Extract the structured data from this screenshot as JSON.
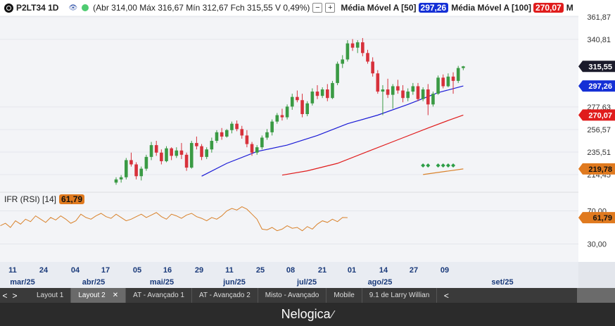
{
  "header": {
    "symbol": "P2LT34 1D",
    "ohlc": "(Abr 314,00 Máx 316,67 Mín 312,67 Fch 315,55 V 0,49%)",
    "ma50_label": "Média Móvel A [50]",
    "ma50_value": "297,26",
    "ma100_label": "Média Móvel A [100]",
    "ma100_value": "270,07",
    "btn_minus": "−",
    "btn_plus": "+",
    "trailing": "M"
  },
  "rsi_panel": {
    "label": "IFR (RSI) [14]",
    "value": "61,79"
  },
  "colors": {
    "up": "#3a9a44",
    "down": "#d7313b",
    "ma50": "#1a1ad6",
    "ma100": "#e01c1c",
    "rsi": "#d9822b",
    "price_badge": "#1b1b2b",
    "ma50_badge": "#1530d6",
    "ma100_badge": "#e01c1c",
    "rsi_badge": "#e07a1f"
  },
  "tabs": [
    {
      "label": "Layout 1",
      "active": false
    },
    {
      "label": "Layout 2",
      "active": true,
      "close": "✕"
    },
    {
      "label": "AT - Avançado 1",
      "active": false
    },
    {
      "label": "AT - Avançado 2",
      "active": false
    },
    {
      "label": "Misto - Avançado",
      "active": false
    },
    {
      "label": "Mobile",
      "active": false
    },
    {
      "label": "9.1 de Larry Willian",
      "active": false
    }
  ],
  "tab_nav": {
    "prev": "<",
    "next": ">",
    "more": "<"
  },
  "footer": {
    "brand": "Nelogica"
  },
  "chart_data": {
    "type": "candlestick",
    "price_axis": {
      "ticks": [
        "361,87",
        "340,81",
        "277,63",
        "256,57",
        "235,51",
        "214,45"
      ],
      "range": [
        200,
        367
      ],
      "badges": [
        {
          "label": "315,55",
          "value": 315.55,
          "color": "#1b1b2b"
        },
        {
          "label": "297,26",
          "value": 297.26,
          "color": "#1530d6"
        },
        {
          "label": "270,07",
          "value": 270.07,
          "color": "#e01c1c"
        },
        {
          "label": "219,78",
          "value": 219.78,
          "color": "#e07a1f"
        }
      ]
    },
    "rsi_axis": {
      "ticks": [
        "70,00",
        "30,00"
      ],
      "range": [
        10,
        90
      ],
      "badge": "61,79",
      "badge_value": 61.79
    },
    "x_day_ticks": [
      "11",
      "24",
      "04",
      "17",
      "05",
      "16",
      "29",
      "11",
      "25",
      "08",
      "21",
      "01",
      "14",
      "27",
      "09"
    ],
    "x_month_ticks": [
      "mar/25",
      "abr/25",
      "mai/25",
      "jun/25",
      "jul/25",
      "ago/25",
      "set/25"
    ],
    "candles": [
      [
        207,
        212,
        205,
        210
      ],
      [
        210,
        214,
        207,
        212
      ],
      [
        212,
        230,
        210,
        228
      ],
      [
        228,
        235,
        222,
        224
      ],
      [
        224,
        226,
        210,
        213
      ],
      [
        213,
        222,
        209,
        220
      ],
      [
        220,
        233,
        218,
        231
      ],
      [
        231,
        245,
        228,
        242
      ],
      [
        242,
        246,
        232,
        235
      ],
      [
        235,
        238,
        224,
        227
      ],
      [
        227,
        241,
        226,
        239
      ],
      [
        239,
        240,
        228,
        232
      ],
      [
        232,
        240,
        230,
        237
      ],
      [
        237,
        244,
        229,
        233
      ],
      [
        233,
        235,
        218,
        221
      ],
      [
        221,
        246,
        220,
        244
      ],
      [
        244,
        250,
        238,
        241
      ],
      [
        241,
        243,
        228,
        231
      ],
      [
        231,
        240,
        229,
        238
      ],
      [
        238,
        249,
        235,
        246
      ],
      [
        246,
        256,
        244,
        254
      ],
      [
        254,
        258,
        247,
        250
      ],
      [
        250,
        257,
        249,
        256
      ],
      [
        256,
        264,
        253,
        262
      ],
      [
        262,
        265,
        255,
        257
      ],
      [
        257,
        260,
        248,
        251
      ],
      [
        251,
        256,
        240,
        243
      ],
      [
        243,
        245,
        232,
        235
      ],
      [
        235,
        242,
        233,
        240
      ],
      [
        240,
        251,
        238,
        249
      ],
      [
        249,
        257,
        247,
        254
      ],
      [
        254,
        266,
        251,
        264
      ],
      [
        264,
        272,
        262,
        270
      ],
      [
        270,
        276,
        265,
        268
      ],
      [
        268,
        280,
        266,
        278
      ],
      [
        278,
        290,
        275,
        287
      ],
      [
        287,
        293,
        282,
        284
      ],
      [
        284,
        290,
        268,
        271
      ],
      [
        271,
        283,
        269,
        281
      ],
      [
        281,
        295,
        279,
        292
      ],
      [
        292,
        298,
        285,
        288
      ],
      [
        288,
        296,
        286,
        294
      ],
      [
        294,
        299,
        283,
        286
      ],
      [
        286,
        302,
        285,
        300
      ],
      [
        300,
        320,
        298,
        318
      ],
      [
        318,
        326,
        314,
        322
      ],
      [
        322,
        340,
        320,
        337
      ],
      [
        337,
        341,
        330,
        333
      ],
      [
        333,
        340,
        328,
        338
      ],
      [
        338,
        342,
        325,
        328
      ],
      [
        328,
        331,
        318,
        320
      ],
      [
        320,
        324,
        306,
        309
      ],
      [
        309,
        312,
        290,
        292
      ],
      [
        292,
        298,
        270,
        294
      ],
      [
        294,
        304,
        286,
        289
      ],
      [
        289,
        299,
        276,
        297
      ],
      [
        297,
        303,
        290,
        293
      ],
      [
        293,
        298,
        282,
        286
      ],
      [
        286,
        295,
        283,
        292
      ],
      [
        292,
        300,
        289,
        297
      ],
      [
        297,
        300,
        283,
        285
      ],
      [
        285,
        296,
        283,
        294
      ],
      [
        294,
        299,
        270,
        280
      ],
      [
        280,
        292,
        278,
        290
      ],
      [
        290,
        307,
        289,
        305
      ],
      [
        305,
        308,
        295,
        297
      ],
      [
        297,
        309,
        296,
        306
      ],
      [
        306,
        310,
        290,
        302
      ],
      [
        302,
        316,
        300,
        314
      ],
      [
        314,
        316,
        312,
        315.55
      ]
    ],
    "ma50": [
      {
        "i": 17,
        "v": 213
      },
      {
        "i": 22,
        "v": 225
      },
      {
        "i": 28,
        "v": 236
      },
      {
        "i": 34,
        "v": 242
      },
      {
        "i": 40,
        "v": 251
      },
      {
        "i": 46,
        "v": 262
      },
      {
        "i": 52,
        "v": 270
      },
      {
        "i": 58,
        "v": 280
      },
      {
        "i": 64,
        "v": 291
      },
      {
        "i": 69,
        "v": 297.26
      }
    ],
    "ma100": [
      {
        "i": 33,
        "v": 214
      },
      {
        "i": 38,
        "v": 218
      },
      {
        "i": 44,
        "v": 225
      },
      {
        "i": 50,
        "v": 236
      },
      {
        "i": 56,
        "v": 247
      },
      {
        "i": 62,
        "v": 258
      },
      {
        "i": 66,
        "v": 265
      },
      {
        "i": 69,
        "v": 270.07
      }
    ],
    "rsi": [
      52,
      55,
      50,
      58,
      54,
      60,
      57,
      64,
      60,
      56,
      62,
      59,
      64,
      60,
      55,
      58,
      66,
      62,
      60,
      64,
      67,
      63,
      61,
      66,
      62,
      58,
      60,
      63,
      66,
      62,
      65,
      68,
      63,
      60,
      66,
      64,
      61,
      65,
      67,
      63,
      61,
      58,
      62,
      60,
      64,
      70,
      73,
      71,
      75,
      72,
      66,
      60,
      48,
      47,
      50,
      46,
      48,
      52,
      49,
      50,
      46,
      51,
      48,
      54,
      58,
      56,
      60,
      57,
      62,
      61.79
    ],
    "signals": [
      {
        "i": 61,
        "v": 223
      },
      {
        "i": 62,
        "v": 223
      },
      {
        "i": 64,
        "v": 223
      },
      {
        "i": 65,
        "v": 223
      },
      {
        "i": 66,
        "v": 223
      },
      {
        "i": 67,
        "v": 223
      }
    ],
    "orange_trend": [
      {
        "i": 61,
        "v": 214.5
      },
      {
        "i": 69,
        "v": 219.78
      }
    ]
  }
}
